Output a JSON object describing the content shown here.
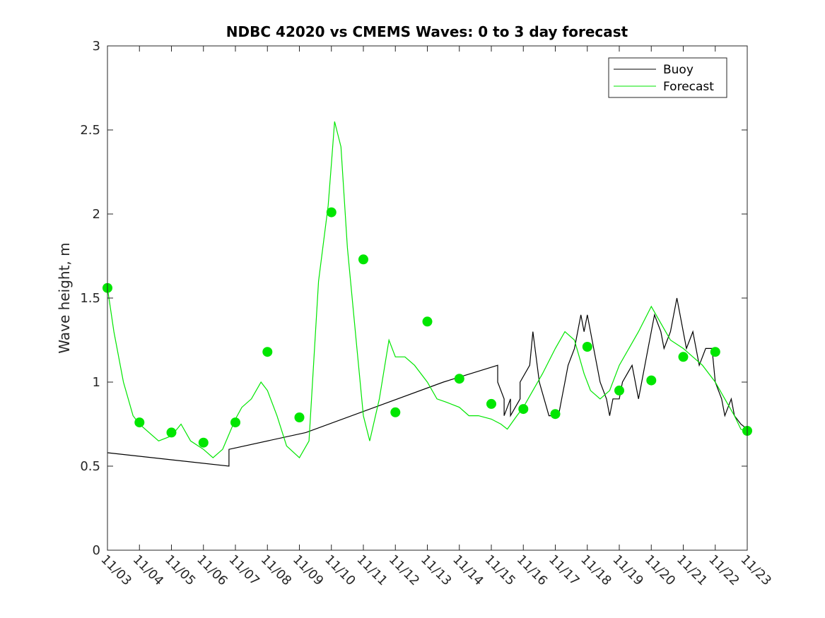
{
  "chart_data": {
    "type": "line",
    "title": "NDBC 42020 vs CMEMS Waves: 0 to 3 day forecast",
    "xlabel": "",
    "ylabel": "Wave height, m",
    "xlim": [
      0,
      20
    ],
    "ylim": [
      0,
      3
    ],
    "x_tick_labels": [
      "11/03",
      "11/04",
      "11/05",
      "11/06",
      "11/07",
      "11/08",
      "11/09",
      "11/10",
      "11/11",
      "11/12",
      "11/13",
      "11/14",
      "11/15",
      "11/16",
      "11/17",
      "11/18",
      "11/19",
      "11/20",
      "11/21",
      "11/22",
      "11/23"
    ],
    "y_ticks": [
      0,
      0.5,
      1,
      1.5,
      2,
      2.5,
      3
    ],
    "y_tick_labels": [
      "0",
      "0.5",
      "1",
      "1.5",
      "2",
      "2.5",
      "3"
    ],
    "legend": {
      "position": "top-right",
      "entries": [
        "Buoy",
        "Forecast"
      ]
    },
    "colors": {
      "buoy": "#000000",
      "forecast": "#00e600"
    },
    "series": [
      {
        "name": "Buoy",
        "x": [
          0,
          3.8,
          3.8,
          6.2,
          10.5,
          12.2,
          12.2,
          12.4,
          12.4,
          12.6,
          12.6,
          12.9,
          12.9,
          13.2,
          13.3,
          13.5,
          13.8,
          14.1,
          14.2,
          14.3,
          14.4,
          14.6,
          14.8,
          14.9,
          15.0,
          15.2,
          15.4,
          15.6,
          15.7,
          15.8,
          16.0,
          16.1,
          16.4,
          16.6,
          16.7,
          16.9,
          17.1,
          17.3,
          17.4,
          17.6,
          17.8,
          18.0,
          18.1,
          18.3,
          18.5,
          18.7,
          18.9,
          19.0,
          19.2,
          19.3,
          19.5,
          19.6,
          19.8,
          20
        ],
        "y": [
          0.58,
          0.5,
          0.6,
          0.7,
          1.0,
          1.1,
          1.0,
          0.9,
          0.8,
          0.9,
          0.8,
          0.9,
          1.0,
          1.1,
          1.3,
          1.0,
          0.8,
          0.8,
          0.9,
          1.0,
          1.1,
          1.2,
          1.4,
          1.3,
          1.4,
          1.2,
          1.0,
          0.9,
          0.8,
          0.9,
          0.9,
          1.0,
          1.1,
          0.9,
          1.0,
          1.2,
          1.4,
          1.3,
          1.2,
          1.3,
          1.5,
          1.3,
          1.2,
          1.3,
          1.1,
          1.2,
          1.2,
          1.0,
          0.9,
          0.8,
          0.9,
          0.8,
          0.75,
          0.72
        ]
      },
      {
        "name": "Forecast",
        "x": [
          0,
          0.2,
          0.5,
          0.8,
          1.0,
          1.3,
          1.6,
          2.0,
          2.3,
          2.6,
          3.0,
          3.3,
          3.6,
          4.0,
          4.2,
          4.5,
          4.8,
          5.0,
          5.3,
          5.6,
          6.0,
          6.3,
          6.6,
          6.9,
          7.0,
          7.1,
          7.3,
          7.5,
          7.8,
          8.0,
          8.2,
          8.5,
          8.8,
          9.0,
          9.3,
          9.6,
          10.0,
          10.3,
          10.6,
          11.0,
          11.3,
          11.6,
          12.0,
          12.3,
          12.5,
          12.8,
          13.0,
          13.3,
          13.6,
          14.0,
          14.3,
          14.6,
          14.9,
          15.1,
          15.4,
          15.7,
          16.0,
          16.3,
          16.6,
          17.0,
          17.3,
          17.6,
          18.0,
          18.3,
          18.6,
          19.0,
          19.3,
          19.6,
          19.8,
          20
        ],
        "y": [
          1.56,
          1.3,
          1.0,
          0.8,
          0.75,
          0.7,
          0.65,
          0.68,
          0.75,
          0.65,
          0.6,
          0.55,
          0.6,
          0.78,
          0.85,
          0.9,
          1.0,
          0.95,
          0.8,
          0.62,
          0.55,
          0.65,
          1.6,
          2.05,
          2.3,
          2.55,
          2.4,
          1.8,
          1.2,
          0.8,
          0.65,
          0.9,
          1.25,
          1.15,
          1.15,
          1.1,
          1.0,
          0.9,
          0.88,
          0.85,
          0.8,
          0.8,
          0.78,
          0.75,
          0.72,
          0.8,
          0.85,
          0.95,
          1.05,
          1.2,
          1.3,
          1.25,
          1.05,
          0.95,
          0.9,
          0.95,
          1.1,
          1.2,
          1.3,
          1.45,
          1.35,
          1.25,
          1.2,
          1.15,
          1.1,
          1.0,
          0.9,
          0.8,
          0.72,
          0.7
        ]
      }
    ],
    "forecast_markers": {
      "x": [
        0,
        1,
        2,
        3,
        4,
        5,
        6,
        7,
        8,
        9,
        10,
        11,
        12,
        13,
        14,
        15,
        16,
        17,
        18,
        19,
        20
      ],
      "y": [
        1.56,
        0.76,
        0.7,
        0.64,
        0.76,
        1.18,
        0.79,
        2.01,
        1.73,
        0.82,
        1.36,
        1.02,
        0.87,
        0.84,
        0.81,
        1.21,
        0.95,
        1.01,
        1.15,
        1.18,
        0.71
      ]
    }
  }
}
